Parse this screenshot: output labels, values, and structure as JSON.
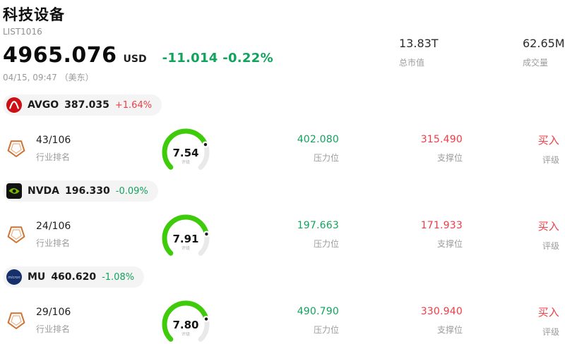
{
  "colors": {
    "up": "#f23b45",
    "down": "#11a35c",
    "gauge_green": "#3ecb0a",
    "gauge_track": "#e9e9e9",
    "pill_bg": "#f4f4f4"
  },
  "header": {
    "title": "科技设备",
    "subtitle": "LIST1016",
    "price": "4965.076",
    "currency": "USD",
    "change": "-11.014 -0.22%",
    "change_dir": "down",
    "datetime": "04/15, 09:47 （美东）",
    "market_cap_value": "13.83T",
    "market_cap_label": "总市值",
    "volume_value": "62.65M",
    "volume_label": "成交量"
  },
  "stocks": [
    {
      "symbol": "AVGO",
      "price": "387.035",
      "change": "+1.64%",
      "change_dir": "up",
      "logo": "broadcom-logo",
      "rank": "43/106",
      "rank_label": "行业排名",
      "score": "7.54",
      "score_value": 7.54,
      "score_label": "评级",
      "pressure_value": "402.080",
      "pressure_label": "压力位",
      "support_value": "315.490",
      "support_label": "支撑位",
      "rating_value": "买入",
      "rating_label": "评级"
    },
    {
      "symbol": "NVDA",
      "price": "196.330",
      "change": "-0.09%",
      "change_dir": "down",
      "logo": "nvidia-logo",
      "rank": "24/106",
      "rank_label": "行业排名",
      "score": "7.91",
      "score_value": 7.91,
      "score_label": "评级",
      "pressure_value": "197.663",
      "pressure_label": "压力位",
      "support_value": "171.933",
      "support_label": "支撑位",
      "rating_value": "买入",
      "rating_label": "评级"
    },
    {
      "symbol": "MU",
      "price": "460.620",
      "change": "-1.08%",
      "change_dir": "down",
      "logo": "micron-logo",
      "logo_text": "micron",
      "rank": "29/106",
      "rank_label": "行业排名",
      "score": "7.80",
      "score_value": 7.8,
      "score_label": "评级",
      "pressure_value": "490.790",
      "pressure_label": "压力位",
      "support_value": "330.940",
      "support_label": "支撑位",
      "rating_value": "买入",
      "rating_label": "评级"
    }
  ]
}
